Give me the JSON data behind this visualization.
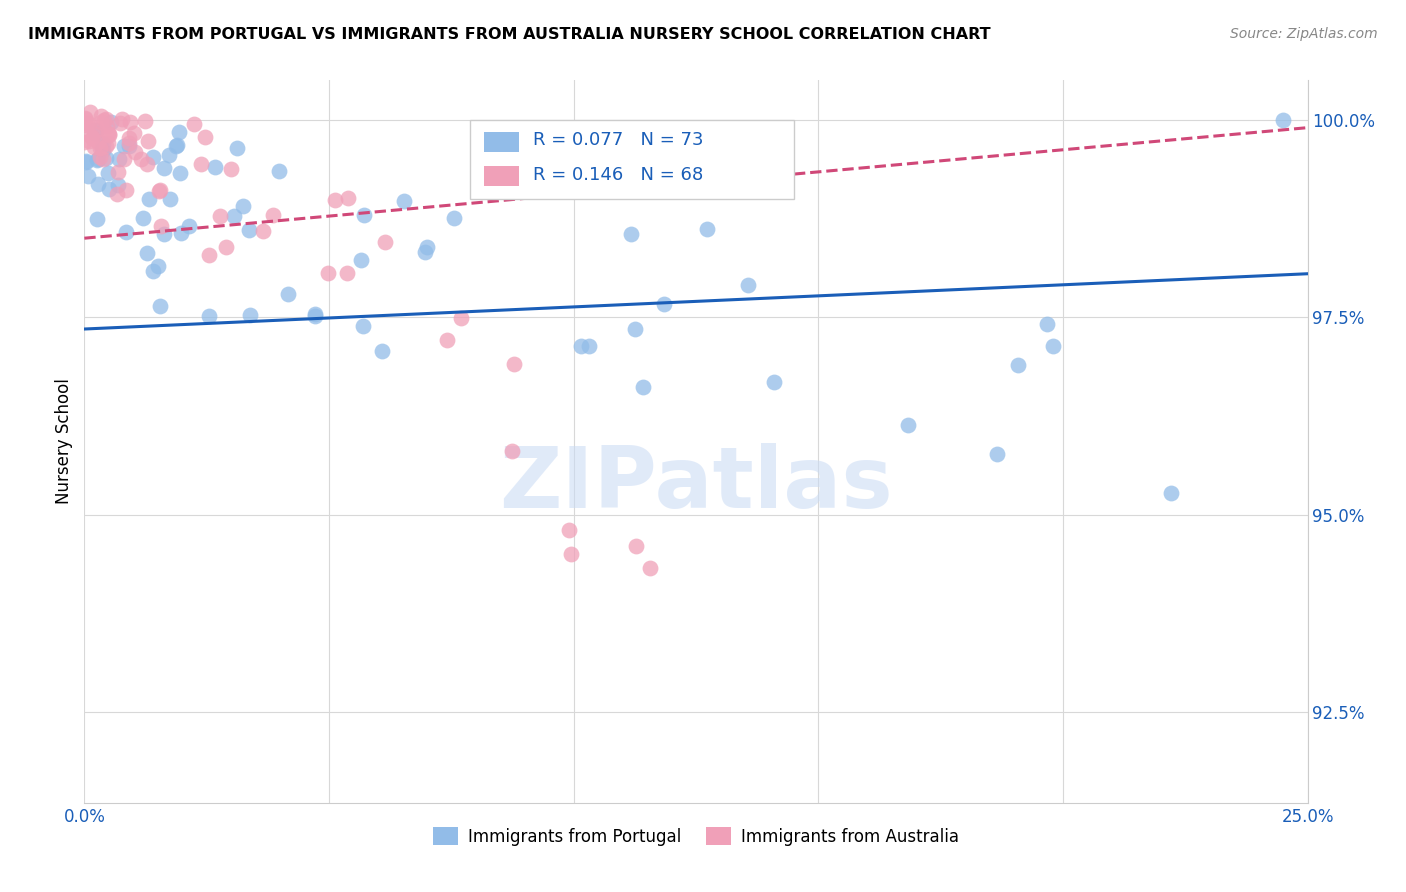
{
  "title": "IMMIGRANTS FROM PORTUGAL VS IMMIGRANTS FROM AUSTRALIA NURSERY SCHOOL CORRELATION CHART",
  "source": "Source: ZipAtlas.com",
  "ylabel": "Nursery School",
  "xlim": [
    0.0,
    0.25
  ],
  "ylim": [
    0.9135,
    1.005
  ],
  "xticks": [
    0.0,
    0.05,
    0.1,
    0.15,
    0.2,
    0.25
  ],
  "xticklabels": [
    "0.0%",
    "",
    "",
    "",
    "",
    "25.0%"
  ],
  "yticks": [
    0.925,
    0.95,
    0.975,
    1.0
  ],
  "yticklabels": [
    "92.5%",
    "95.0%",
    "97.5%",
    "100.0%"
  ],
  "legend1_label": "Immigrants from Portugal",
  "legend2_label": "Immigrants from Australia",
  "r1": 0.077,
  "n1": 73,
  "r2": 0.146,
  "n2": 68,
  "color_blue": "#92bce8",
  "color_pink": "#f0a0b8",
  "line_blue": "#1a5eb8",
  "line_pink": "#d04878",
  "watermark": "ZIPatlas",
  "blue_line_x0": 0.0,
  "blue_line_x1": 0.25,
  "blue_line_y0": 0.9735,
  "blue_line_y1": 0.9805,
  "pink_line_x0": 0.0,
  "pink_line_x1": 0.25,
  "pink_line_y0": 0.985,
  "pink_line_y1": 0.999
}
